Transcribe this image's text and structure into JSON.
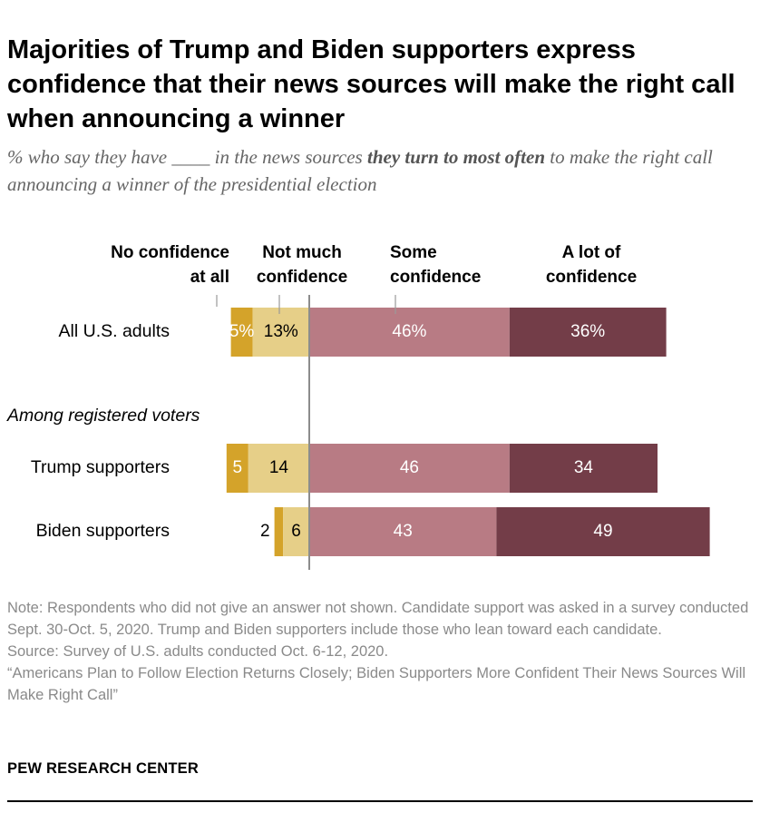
{
  "title": "Majorities of Trump and Biden supporters express confidence that their news sources will make the right call when announcing a winner",
  "subtitle": {
    "before": "% who say they have ____ in the news sources ",
    "emphasis": "they turn to most often",
    "after": " to make the right call announcing a winner of the presidential election"
  },
  "chart_data": {
    "type": "bar",
    "orientation": "horizontal",
    "stacked": "diverging",
    "categories": [
      "All U.S. adults",
      "Trump supporters",
      "Biden supporters"
    ],
    "group_label": "Among registered voters",
    "series": [
      {
        "name": "No confidence at all",
        "label_lines": [
          "No confidence",
          "at all"
        ],
        "color": "#d4a32a",
        "values": [
          5,
          5,
          2
        ],
        "data_labels": [
          "5%",
          "5",
          "2"
        ]
      },
      {
        "name": "Not much confidence",
        "label_lines": [
          "Not much",
          "confidence"
        ],
        "color": "#e6cf88",
        "values": [
          13,
          14,
          6
        ],
        "data_labels": [
          "13%",
          "14",
          "6"
        ]
      },
      {
        "name": "Some confidence",
        "label_lines": [
          "Some",
          "confidence"
        ],
        "color": "#b87b84",
        "values": [
          46,
          46,
          43
        ],
        "data_labels": [
          "46%",
          "46",
          "43"
        ]
      },
      {
        "name": "A lot of confidence",
        "label_lines": [
          "A lot of",
          "confidence"
        ],
        "color": "#733d48",
        "values": [
          36,
          34,
          49
        ],
        "data_labels": [
          "36%",
          "34",
          "49"
        ]
      }
    ]
  },
  "notes": {
    "note": "Note: Respondents who did not give an answer not shown. Candidate support was asked in a survey conducted Sept. 30-Oct. 5, 2020. Trump and Biden supporters include those who lean toward each candidate.",
    "source": "Source: Survey of U.S. adults conducted Oct. 6-12, 2020.",
    "report": "“Americans Plan to Follow Election Returns Closely; Biden Supporters More Confident Their News Sources Will Make Right Call”"
  },
  "brand": "PEW RESEARCH CENTER"
}
